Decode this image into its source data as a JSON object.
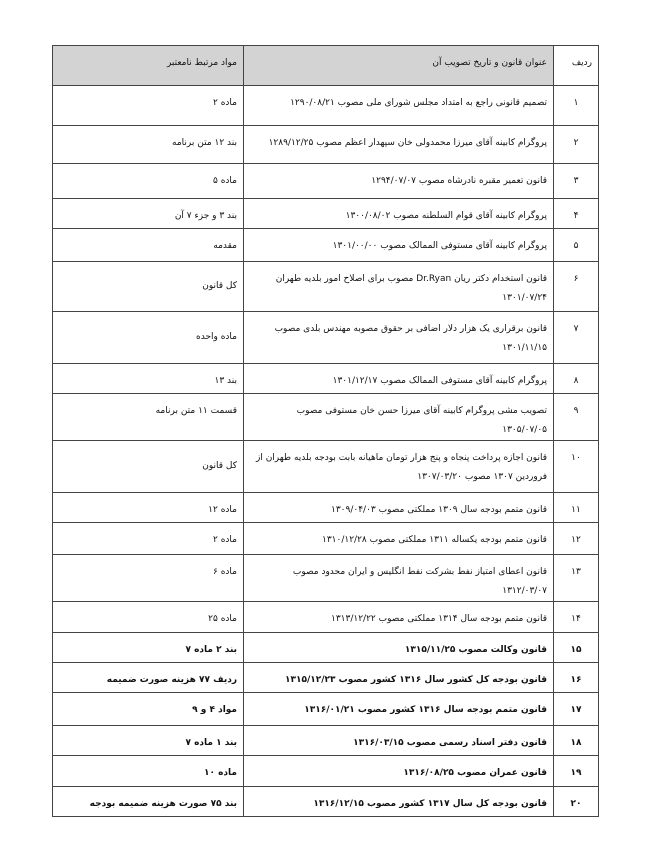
{
  "headers": {
    "row": "ردیف",
    "title": "عنوان قانون و تاریخ تصویب آن",
    "related": "مواد مرتبط نامعتبر"
  },
  "rows": [
    {
      "n": "۱",
      "title": "تصمیم قانونی راجع به امتداد مجلس شورای ملی مصوب ۱۲۹۰/۰۸/۲۱",
      "related": "ماده ۲",
      "bold": false
    },
    {
      "n": "۲",
      "title": "پروگرام کابینه آقای میرزا محمدولی خان سپهدار اعظم مصوب ۱۲۸۹/۱۲/۲۵",
      "related": "بند ۱۲ متن برنامه",
      "bold": false
    },
    {
      "n": "۳",
      "title": "قانون تعمیر مقبره نادرشاه مصوب ۱۲۹۴/۰۷/۰۷",
      "related": "ماده ۵",
      "bold": false
    },
    {
      "n": "۴",
      "title": "پروگرام کابینه آقای قوام السلطنه مصوب ۱۳۰۰/۰۸/۰۲",
      "related": "بند ۳ و جزء ۷ آن",
      "bold": false
    },
    {
      "n": "۵",
      "title": "پروگرام کابینه آقای مستوفی الممالک مصوب ۱۳۰۱/۰۰/۰۰",
      "related": "مقدمه",
      "bold": false
    },
    {
      "n": "۶",
      "title": "قانون استخدام دکتر ریان Dr.Ryan مصوب برای اصلاح امور بلدیه طهران ۱۳۰۱/۰۷/۲۴",
      "related": "کل قانون",
      "bold": false
    },
    {
      "n": "۷",
      "title": "قانون برقراری یک هزار دلار اضافی بر حقوق مصوبه مهندس بلدی مصوب ۱۳۰۱/۱۱/۱۵",
      "related": "ماده واحده",
      "bold": false
    },
    {
      "n": "۸",
      "title": "پروگرام کابینه آقای مستوفی الممالک مصوب ۱۳۰۱/۱۲/۱۷",
      "related": "بند ۱۳",
      "bold": false
    },
    {
      "n": "۹",
      "title": "تصویب مشی پروگرام کابینه آقای میرزا حسن خان مستوفی مصوب ۱۳۰۵/۰۷/۰۵",
      "related": "قسمت ۱۱ متن برنامه",
      "bold": false
    },
    {
      "n": "۱۰",
      "title": "قانون اجازه پرداخت پنجاه و پنج هزار تومان ماهیانه بابت بودجه بلدیه طهران از فروردین ۱۳۰۷ مصوب ۱۳۰۷/۰۳/۲۰",
      "related": "کل قانون",
      "bold": false
    },
    {
      "n": "۱۱",
      "title": "قانون متمم بودجه سال ۱۳۰۹ مملکتی مصوب ۱۳۰۹/۰۴/۰۳",
      "related": "ماده ۱۲",
      "bold": false
    },
    {
      "n": "۱۲",
      "title": "قانون متمم بودجه یکساله ۱۳۱۱ مملکتی مصوب ۱۳۱۰/۱۲/۲۸",
      "related": "ماده ۲",
      "bold": false
    },
    {
      "n": "۱۳",
      "title": "قانون اعطای امتیاز نفط بشرکت نفط انگلیس و ایران محدود مصوب ۱۳۱۲/۰۳/۰۷",
      "related": "ماده ۶",
      "bold": false
    },
    {
      "n": "۱۴",
      "title": "قانون متمم بودجه سال ۱۳۱۴ مملکتی مصوب ۱۳۱۳/۱۲/۲۲",
      "related": "ماده ۲۵",
      "bold": false
    },
    {
      "n": "۱۵",
      "title": "قانون وکالت مصوب ۱۳۱۵/۱۱/۲۵",
      "related": "بند ۲ ماده ۷",
      "bold": true
    },
    {
      "n": "۱۶",
      "title": "قانون بودجه کل کشور سال ۱۳۱۶ کشور مصوب ۱۳۱۵/۱۲/۲۳",
      "related": "ردیف ۷۷ هزینه صورت ضمیمه",
      "bold": true
    },
    {
      "n": "۱۷",
      "title": "قانون متمم بودجه سال ۱۳۱۶ کشور مصوب ۱۳۱۶/۰۱/۲۱",
      "related": "مواد ۴ و ۹",
      "bold": true
    },
    {
      "n": "۱۸",
      "title": "قانون دفتر اسناد رسمی مصوب ۱۳۱۶/۰۳/۱۵",
      "related": "بند ۱ ماده ۷",
      "bold": true
    },
    {
      "n": "۱۹",
      "title": "قانون عمران مصوب ۱۳۱۶/۰۸/۲۵",
      "related": "ماده ۱۰",
      "bold": true
    },
    {
      "n": "۲۰",
      "title": "قانون بودجه کل سال ۱۳۱۷ کشور مصوب ۱۳۱۶/۱۲/۱۵",
      "related": "بند ۷۵ صورت هزینه ضمیمه بودجه",
      "bold": true
    }
  ]
}
